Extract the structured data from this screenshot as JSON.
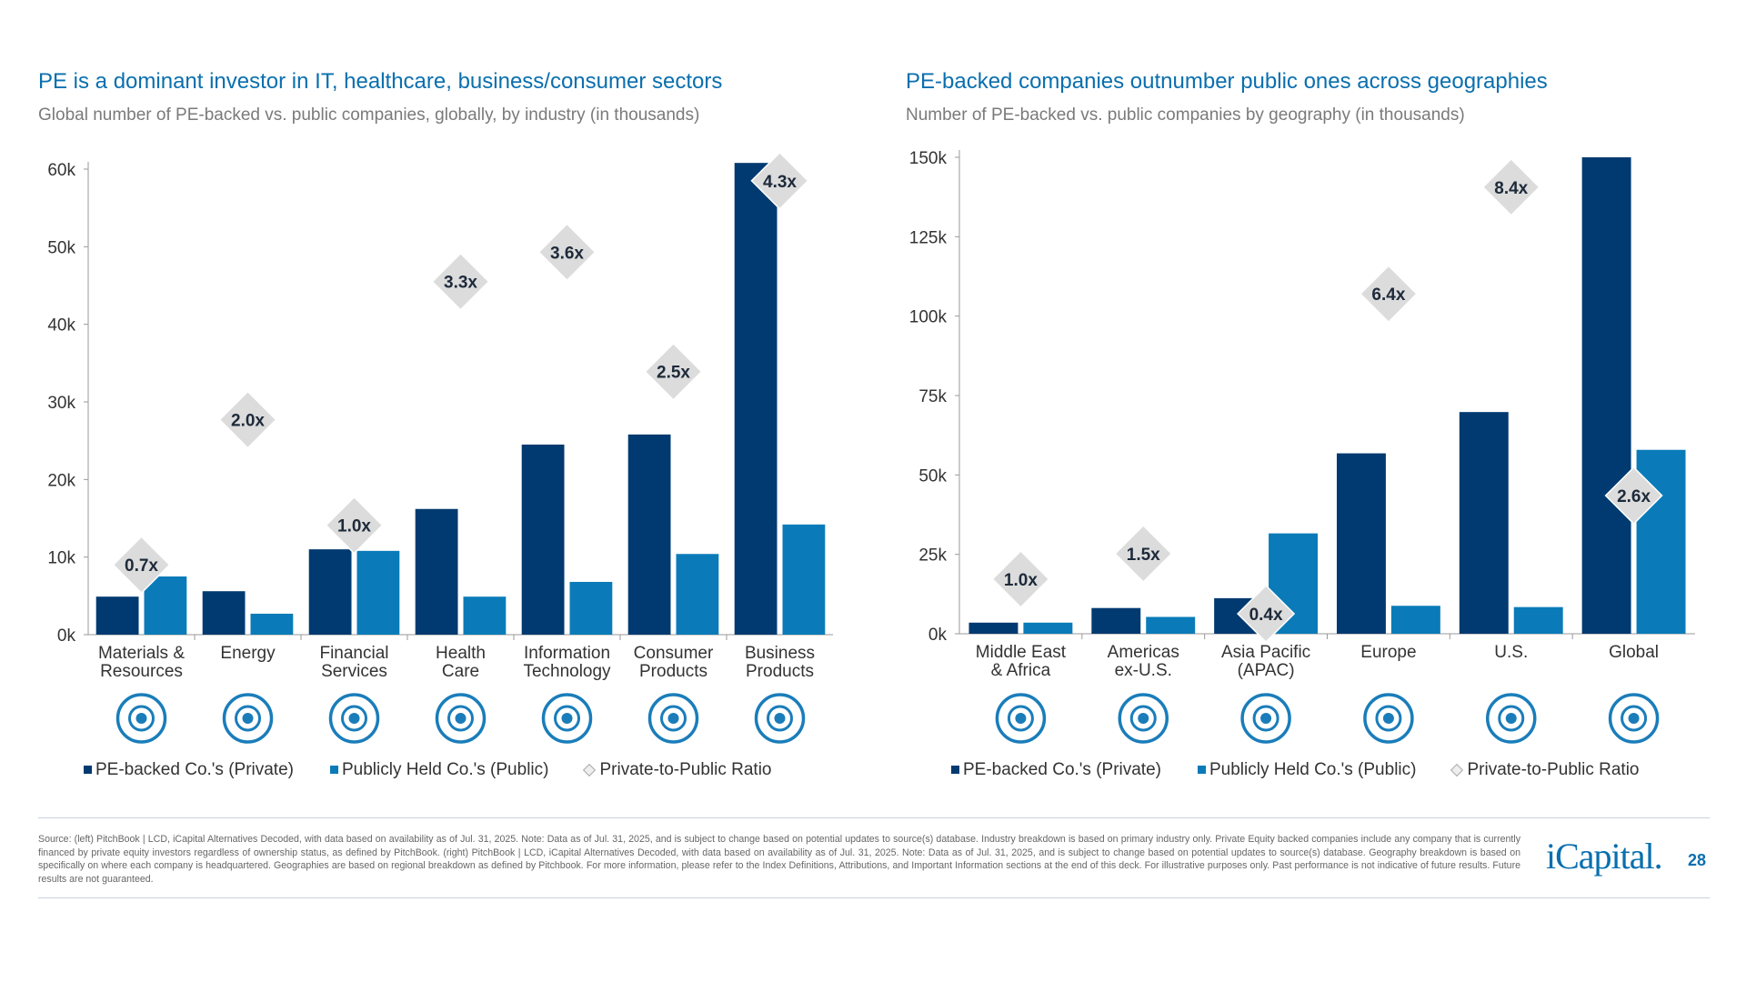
{
  "colors": {
    "private": "#003a70",
    "public": "#0a7bb8",
    "diamond": "#dcdcdc",
    "title": "#0a6fae"
  },
  "left": {
    "title": "PE is a dominant investor in IT, healthcare, business/consumer sectors",
    "subtitle": "Global number of PE-backed vs. public companies, globally, by industry (in thousands)"
  },
  "right": {
    "title": "PE-backed companies outnumber public ones across geographies",
    "subtitle": "Number of PE-backed vs. public companies by geography (in thousands)"
  },
  "legend": {
    "private": "PE-backed Co.'s (Private)",
    "public": "Publicly Held Co.'s (Public)",
    "ratio": "Private-to-Public Ratio"
  },
  "chart_data": [
    {
      "type": "bar",
      "categories": [
        [
          "Materials &",
          "Resources"
        ],
        [
          "Energy"
        ],
        [
          "Financial",
          "Services"
        ],
        [
          "Health",
          "Care"
        ],
        [
          "Information",
          "Technology"
        ],
        [
          "Consumer",
          "Products"
        ],
        [
          "Business",
          "Products"
        ]
      ],
      "icons": [
        "mining-cart-icon",
        "oil-rig-icon",
        "finance-dollar-icon",
        "stethoscope-icon",
        "laptop-icon",
        "building-icon",
        "sofa-icon"
      ],
      "series": [
        {
          "name": "PE-backed Co.'s (Private)",
          "values": [
            4.9,
            5.6,
            11.0,
            16.2,
            24.5,
            25.8,
            60.8
          ]
        },
        {
          "name": "Publicly Held Co.'s (Public)",
          "values": [
            7.5,
            2.7,
            10.8,
            4.9,
            6.8,
            10.4,
            14.2
          ]
        }
      ],
      "ratios": [
        "0.7x",
        "2.0x",
        "1.0x",
        "3.3x",
        "3.6x",
        "2.5x",
        "4.3x"
      ],
      "yticks": [
        "0k",
        "10k",
        "20k",
        "30k",
        "40k",
        "50k",
        "60k"
      ],
      "ylim": [
        0,
        60
      ],
      "yunit": "thousands",
      "grid": false
    },
    {
      "type": "bar",
      "categories": [
        [
          "Middle East",
          "& Africa"
        ],
        [
          "Americas",
          "ex-U.S."
        ],
        [
          "Asia Pacific",
          "(APAC)"
        ],
        [
          "Europe"
        ],
        [
          "U.S."
        ],
        [
          "Global"
        ]
      ],
      "icons": [
        "africa-globe-icon",
        "americas-globe-icon",
        "asia-globe-icon",
        "europe-globe-icon",
        "us-globe-icon",
        "world-globe-icon"
      ],
      "series": [
        {
          "name": "PE-backed Co.'s (Private)",
          "values": [
            3.5,
            8.1,
            11.2,
            56.8,
            69.8,
            150.0
          ]
        },
        {
          "name": "Publicly Held Co.'s (Public)",
          "values": [
            3.5,
            5.3,
            31.6,
            8.8,
            8.4,
            57.9
          ]
        }
      ],
      "ratios": [
        "1.0x",
        "1.5x",
        "0.4x",
        "6.4x",
        "8.4x",
        "2.6x"
      ],
      "yticks": [
        "0k",
        "25k",
        "50k",
        "75k",
        "100k",
        "125k",
        "150k"
      ],
      "ylim": [
        0,
        150
      ],
      "yunit": "thousands",
      "grid": false
    }
  ],
  "footer": {
    "text": "Source: (left) PitchBook | LCD, iCapital Alternatives Decoded, with data based on availability as of Jul. 31, 2025. Note: Data as of Jul. 31, 2025, and is subject to change based on potential updates to source(s) database. Industry breakdown is based on primary industry only. Private Equity backed companies include any company that is currently financed by private equity investors regardless of ownership status, as defined by PitchBook. (right) PitchBook | LCD, iCapital Alternatives Decoded, with data based on availability as of Jul. 31, 2025. Note: Data as of Jul. 31, 2025, and is subject to change based on potential updates to source(s) database. Geography breakdown is based on specifically on where each company is headquartered. Geographies are based on regional breakdown as defined by Pitchbook. For more information, please refer to the Index Definitions, Attributions, and Important Information sections at the end of this deck. For illustrative purposes only. Past performance is not indicative of future results. Future results are not guaranteed.",
    "logo": "iCapital.",
    "page": "28"
  }
}
